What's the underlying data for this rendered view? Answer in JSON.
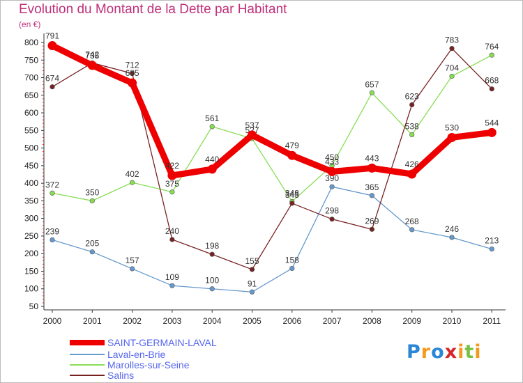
{
  "title": "Evolution du Montant de la Dette par Habitant",
  "unit": "(en €)",
  "brand": "Proxiti",
  "chart_data": {
    "type": "line",
    "x": [
      "2000",
      "2001",
      "2002",
      "2003",
      "2004",
      "2005",
      "2006",
      "2007",
      "2008",
      "2009",
      "2010",
      "2011"
    ],
    "yticks": [
      50,
      100,
      150,
      200,
      250,
      300,
      350,
      400,
      450,
      500,
      550,
      600,
      650,
      700,
      750,
      800
    ],
    "ylim": [
      50,
      800
    ],
    "grid": false,
    "legend": "bottom-left",
    "series": [
      {
        "name": "SAINT-GERMAIN-LAVAL",
        "color": "#ee0000",
        "values": [
          791,
          735,
          685,
          422,
          440,
          537,
          479,
          433,
          443,
          426,
          530,
          544
        ],
        "labels": [
          "791",
          "735",
          "685",
          "422",
          "440",
          "537",
          "479",
          "433",
          "443",
          "426",
          "530",
          "544"
        ]
      },
      {
        "name": "Laval-en-Brie",
        "color": "#6699cc",
        "values": [
          239,
          205,
          157,
          109,
          100,
          91,
          158,
          390,
          365,
          268,
          246,
          213
        ],
        "labels": [
          "239",
          "205",
          "157",
          "109",
          "100",
          "91",
          "158",
          "390",
          "365",
          "268",
          "246",
          "213"
        ]
      },
      {
        "name": "Marolles-sur-Seine",
        "color": "#88dd55",
        "values": [
          372,
          350,
          402,
          375,
          561,
          527,
          348,
          450,
          657,
          538,
          704,
          764
        ],
        "labels": [
          "372",
          "350",
          "402",
          "375",
          "561",
          "527",
          "348",
          "450",
          "657",
          "538",
          "704",
          "764"
        ]
      },
      {
        "name": "Salins",
        "color": "#772222",
        "values": [
          674,
          742,
          712,
          240,
          198,
          155,
          343,
          298,
          269,
          623,
          783,
          668
        ],
        "labels": [
          "674",
          "742",
          "712",
          "240",
          "198",
          "155",
          "343",
          "298",
          "269",
          "623",
          "783",
          "668"
        ]
      }
    ]
  }
}
